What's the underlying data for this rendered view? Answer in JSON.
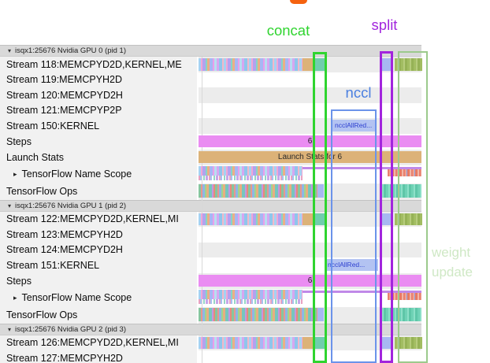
{
  "annotations": {
    "concat": "concat",
    "split": "split",
    "nccl": "nccl",
    "weight_update_line1": "weight",
    "weight_update_line2": "update"
  },
  "colors": {
    "concat": "#2fd42f",
    "split": "#a225dd",
    "nccl_text": "#4a7fe0",
    "nccl_box": "#6b93ea",
    "weight_update_text": "#cfe8c5",
    "weight_update_box": "#9cca8c",
    "steps_bar": "#ea8cf2",
    "launch_stats_bar": "#dcb278",
    "nccl_bar": "#b3c3f2"
  },
  "groups": [
    {
      "header": "isqx1:25676 Nvidia GPU 0 (pid 1)",
      "collapse_arrow": "▾",
      "rows": [
        {
          "label": "Stream 118:MEMCPYD2D,KERNEL,ME",
          "type": "stream-main"
        },
        {
          "label": "Stream 119:MEMCPYH2D",
          "type": "empty"
        },
        {
          "label": "Stream 120:MEMCPYD2H",
          "type": "empty"
        },
        {
          "label": "Stream 121:MEMCPYP2P",
          "type": "empty"
        },
        {
          "label": "Stream 150:KERNEL",
          "type": "nccl",
          "bar_label": "ncclAllRed..."
        },
        {
          "label": "Steps",
          "type": "steps",
          "bar_label": "6"
        },
        {
          "label": "Launch Stats",
          "type": "launch-stats",
          "bar_label": "Launch Stats for 6"
        },
        {
          "label": "TensorFlow Name Scope",
          "type": "tfns",
          "expandable": true,
          "expand_arrow": "▸"
        },
        {
          "label": "TensorFlow Ops",
          "type": "tfops"
        }
      ]
    },
    {
      "header": "isqx1:25676 Nvidia GPU 1 (pid 2)",
      "collapse_arrow": "▾",
      "rows": [
        {
          "label": "Stream 122:MEMCPYD2D,KERNEL,MI",
          "type": "stream-main"
        },
        {
          "label": "Stream 123:MEMCPYH2D",
          "type": "empty"
        },
        {
          "label": "Stream 124:MEMCPYD2H",
          "type": "empty"
        },
        {
          "label": "Stream 151:KERNEL",
          "type": "nccl",
          "bar_label": "ncclAllRed..."
        },
        {
          "label": "Steps",
          "type": "steps",
          "bar_label": "6"
        },
        {
          "label": "TensorFlow Name Scope",
          "type": "tfns",
          "expandable": true,
          "expand_arrow": "▸"
        },
        {
          "label": "TensorFlow Ops",
          "type": "tfops"
        }
      ]
    },
    {
      "header": "isqx1:25676 Nvidia GPU 2 (pid 3)",
      "collapse_arrow": "▾",
      "rows": [
        {
          "label": "Stream 126:MEMCPYD2D,KERNEL,MI",
          "type": "stream-main"
        },
        {
          "label": "Stream 127:MEMCPYH2D",
          "type": "empty"
        }
      ]
    }
  ]
}
